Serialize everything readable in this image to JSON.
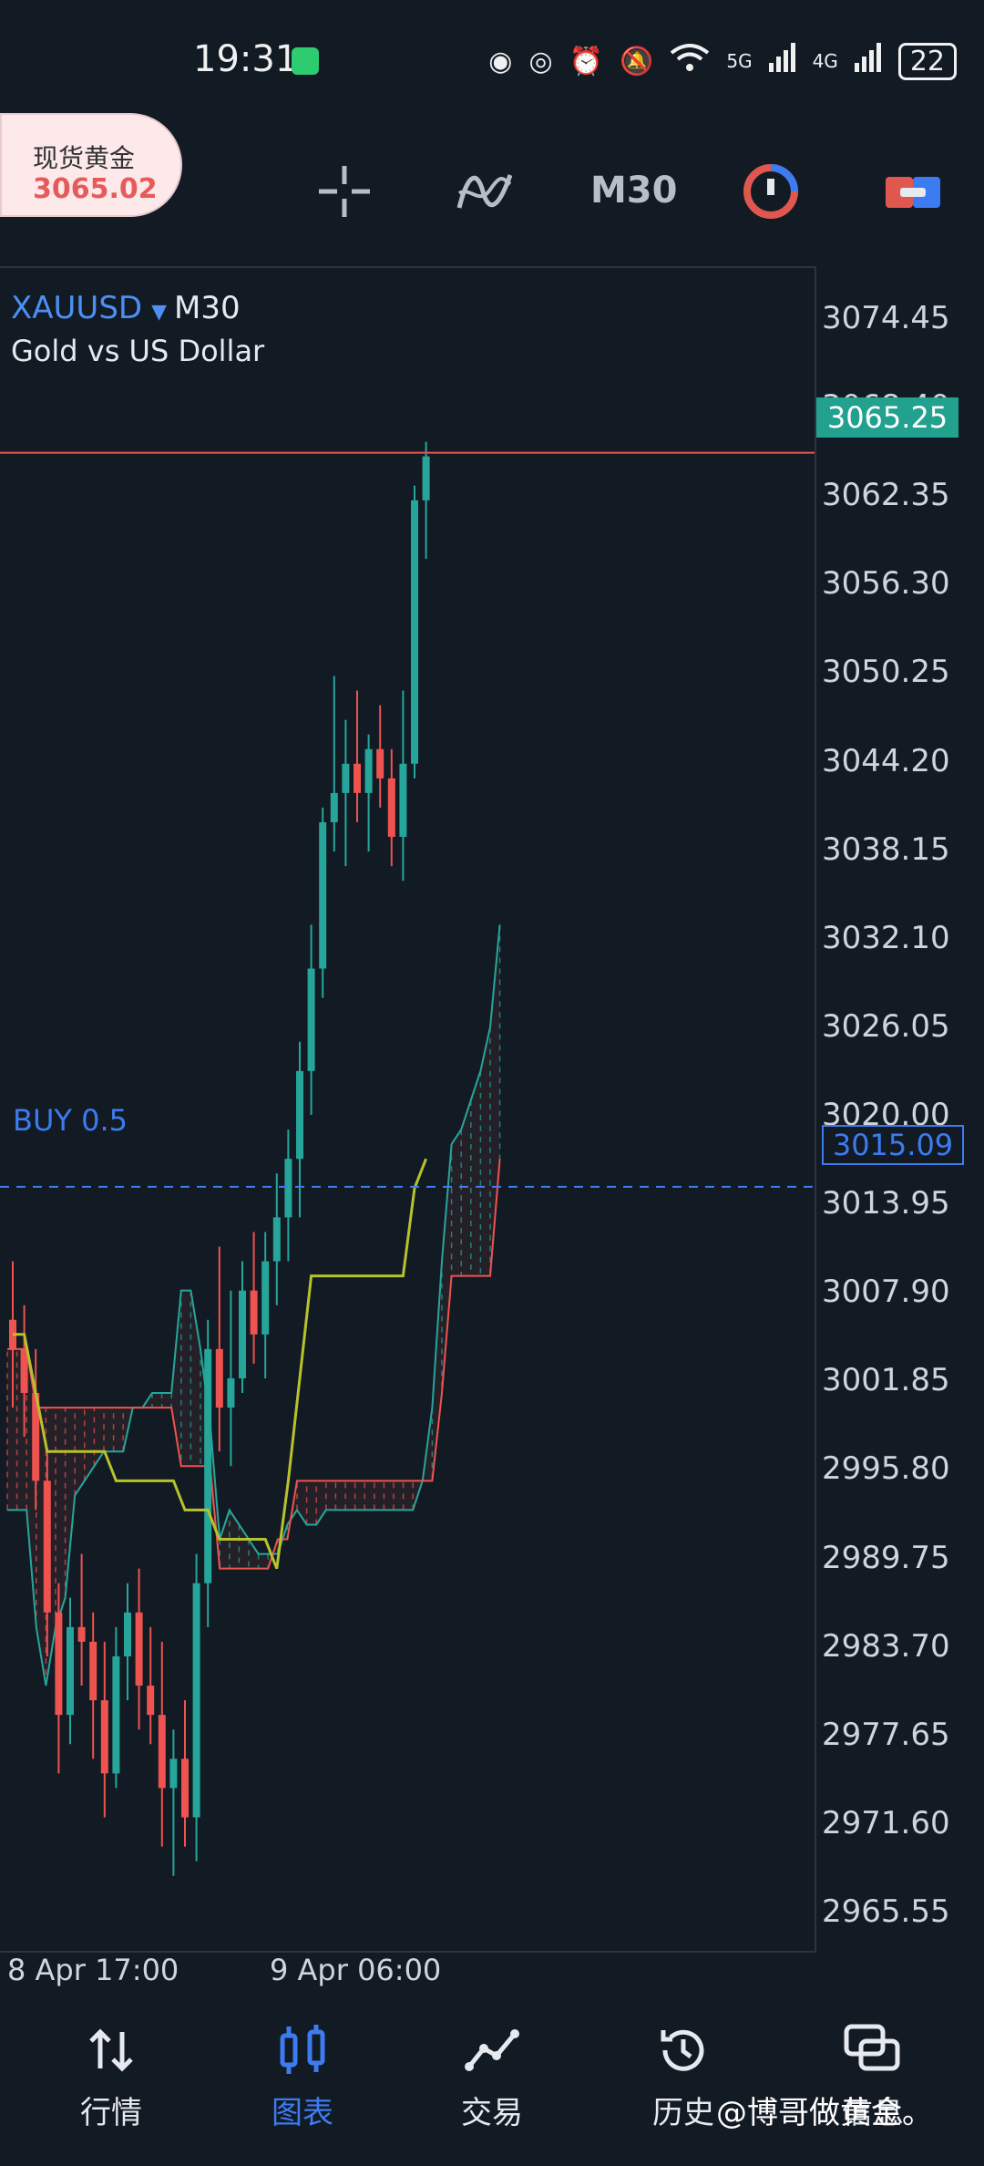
{
  "status_bar": {
    "time": "19:31",
    "signal_5g": "5G",
    "signal_4g": "4G",
    "battery": "22"
  },
  "toolbar": {
    "symbol_name": "现货黄金",
    "symbol_price": "3065.02",
    "timeframe": "M30",
    "icons": [
      "crosshair-icon",
      "indicators-icon",
      "timeframe",
      "chart-type-icon",
      "trade-toggle-icon"
    ]
  },
  "chart": {
    "symbol": "XAUUSD",
    "timeframe": "M30",
    "description": "Gold vs US Dollar",
    "current_price_tag": "3065.25",
    "buy_label": "BUY 0.5",
    "buy_price_tag": "3015.09",
    "colors": {
      "up": "#26a69a",
      "down": "#ef5350",
      "kijun": "#b8c22a",
      "buy_line": "#3d7bf0",
      "background": "#121a24"
    }
  },
  "chart_data": {
    "type": "candlestick",
    "symbol": "XAUUSD",
    "timeframe": "M30",
    "title": "Gold vs US Dollar",
    "y_ticks": [
      "3074.45",
      "3068.40",
      "3062.35",
      "3056.30",
      "3050.25",
      "3044.20",
      "3038.15",
      "3032.10",
      "3026.05",
      "3020.00",
      "3013.95",
      "3007.90",
      "3001.85",
      "2995.80",
      "2989.75",
      "2983.70",
      "2977.65",
      "2971.60",
      "2965.55"
    ],
    "x_ticks": [
      "8 Apr 17:00",
      "9 Apr 06:00"
    ],
    "ylim": [
      2963.0,
      3078.0
    ],
    "last_price": 3065.25,
    "buy_order": {
      "label": "BUY 0.5",
      "price": 3015.09
    },
    "candles": [
      {
        "o": 3006,
        "h": 3010,
        "l": 3000,
        "c": 3004
      },
      {
        "o": 3004,
        "h": 3007,
        "l": 2998,
        "c": 3001
      },
      {
        "o": 3001,
        "h": 3004,
        "l": 2993,
        "c": 2995
      },
      {
        "o": 2995,
        "h": 2997,
        "l": 2983,
        "c": 2986
      },
      {
        "o": 2986,
        "h": 2988,
        "l": 2975,
        "c": 2979
      },
      {
        "o": 2979,
        "h": 2987,
        "l": 2977,
        "c": 2985
      },
      {
        "o": 2985,
        "h": 2990,
        "l": 2981,
        "c": 2984
      },
      {
        "o": 2984,
        "h": 2986,
        "l": 2976,
        "c": 2980
      },
      {
        "o": 2980,
        "h": 2984,
        "l": 2972,
        "c": 2975
      },
      {
        "o": 2975,
        "h": 2985,
        "l": 2974,
        "c": 2983
      },
      {
        "o": 2983,
        "h": 2988,
        "l": 2980,
        "c": 2986
      },
      {
        "o": 2986,
        "h": 2989,
        "l": 2978,
        "c": 2981
      },
      {
        "o": 2981,
        "h": 2985,
        "l": 2977,
        "c": 2979
      },
      {
        "o": 2979,
        "h": 2984,
        "l": 2970,
        "c": 2974
      },
      {
        "o": 2974,
        "h": 2978,
        "l": 2968,
        "c": 2976
      },
      {
        "o": 2976,
        "h": 2980,
        "l": 2970,
        "c": 2972
      },
      {
        "o": 2972,
        "h": 2990,
        "l": 2969,
        "c": 2988
      },
      {
        "o": 2988,
        "h": 3006,
        "l": 2985,
        "c": 3004
      },
      {
        "o": 3004,
        "h": 3011,
        "l": 2997,
        "c": 3000
      },
      {
        "o": 3000,
        "h": 3008,
        "l": 2996,
        "c": 3002
      },
      {
        "o": 3002,
        "h": 3010,
        "l": 3001,
        "c": 3008
      },
      {
        "o": 3008,
        "h": 3012,
        "l": 3003,
        "c": 3005
      },
      {
        "o": 3005,
        "h": 3012,
        "l": 3002,
        "c": 3010
      },
      {
        "o": 3010,
        "h": 3016,
        "l": 3007,
        "c": 3013
      },
      {
        "o": 3013,
        "h": 3019,
        "l": 3010,
        "c": 3017
      },
      {
        "o": 3017,
        "h": 3025,
        "l": 3013,
        "c": 3023
      },
      {
        "o": 3023,
        "h": 3033,
        "l": 3020,
        "c": 3030
      },
      {
        "o": 3030,
        "h": 3041,
        "l": 3028,
        "c": 3040
      },
      {
        "o": 3040,
        "h": 3050,
        "l": 3038,
        "c": 3042
      },
      {
        "o": 3042,
        "h": 3047,
        "l": 3037,
        "c": 3044
      },
      {
        "o": 3044,
        "h": 3049,
        "l": 3040,
        "c": 3042
      },
      {
        "o": 3042,
        "h": 3046,
        "l": 3038,
        "c": 3045
      },
      {
        "o": 3045,
        "h": 3048,
        "l": 3041,
        "c": 3043
      },
      {
        "o": 3043,
        "h": 3045,
        "l": 3037,
        "c": 3039
      },
      {
        "o": 3039,
        "h": 3049,
        "l": 3036,
        "c": 3044
      },
      {
        "o": 3044,
        "h": 3063,
        "l": 3043,
        "c": 3062
      },
      {
        "o": 3062,
        "h": 3066,
        "l": 3058,
        "c": 3065
      }
    ],
    "kijun": [
      3005,
      3005,
      3001,
      2997,
      2997,
      2997,
      2997,
      2997,
      2997,
      2995,
      2995,
      2995,
      2995,
      2995,
      2995,
      2993,
      2993,
      2993,
      2991,
      2991,
      2991,
      2991,
      2991,
      2989,
      2995,
      3002,
      3009,
      3009,
      3009,
      3009,
      3009,
      3009,
      3009,
      3009,
      3009,
      3015,
      3017
    ],
    "span_a": [
      2993,
      2993,
      2993,
      2985,
      2981,
      2985,
      2987,
      2994,
      2995,
      2996,
      2997,
      2997,
      2997,
      3000,
      3000,
      3001,
      3001,
      3001,
      3008,
      3008,
      3004,
      2999,
      2991,
      2993,
      2992,
      2991,
      2990,
      2990,
      2990,
      2992,
      2993,
      2992,
      2992,
      2993,
      2993,
      2993,
      2993,
      2993,
      2993,
      2993,
      2993,
      2993,
      2993,
      2995,
      3000,
      3010,
      3018,
      3019,
      3021,
      3023,
      3026,
      3033
    ],
    "span_b": [
      3004,
      3004,
      3004,
      3000,
      3000,
      3000,
      3000,
      3000,
      3000,
      3000,
      3000,
      3000,
      3000,
      3000,
      3000,
      3000,
      3000,
      3000,
      2996,
      2996,
      2996,
      2996,
      2989,
      2989,
      2989,
      2989,
      2989,
      2989,
      2991,
      2991,
      2995,
      2995,
      2995,
      2995,
      2995,
      2995,
      2995,
      2995,
      2995,
      2995,
      2995,
      2995,
      2995,
      2995,
      2995,
      3001,
      3009,
      3009,
      3009,
      3009,
      3009,
      3017
    ]
  },
  "bottom_nav": {
    "items": [
      {
        "label": "行情",
        "icon": "quotes-icon"
      },
      {
        "label": "图表",
        "icon": "chart-icon",
        "active": true
      },
      {
        "label": "交易",
        "icon": "trade-icon"
      },
      {
        "label": "历史",
        "icon": "history-icon"
      },
      {
        "label": "信息",
        "icon": "messages-icon"
      }
    ]
  },
  "watermark": "@博哥做黄金。"
}
